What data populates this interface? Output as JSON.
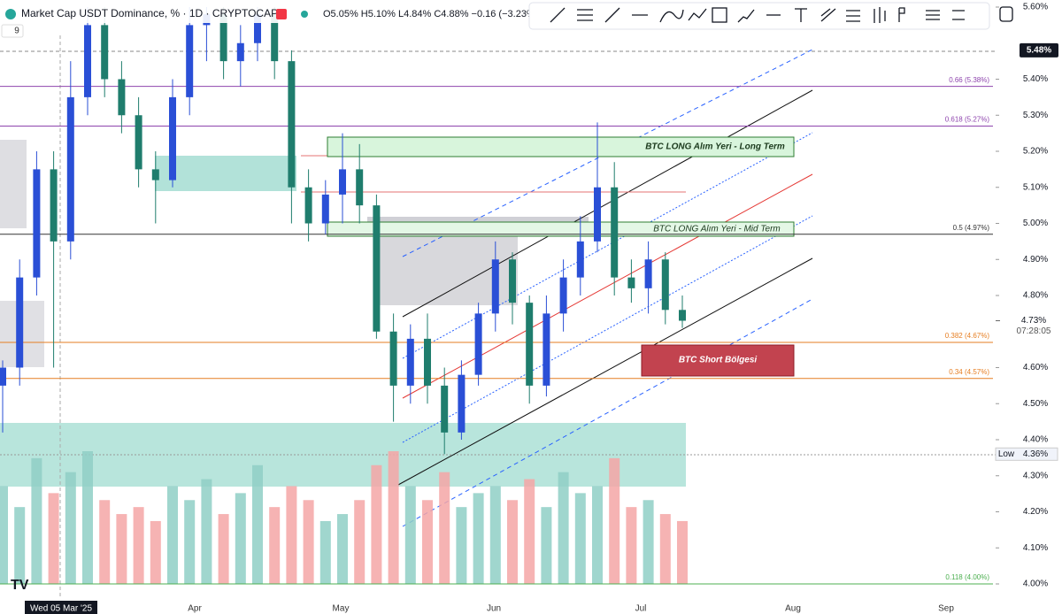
{
  "chart_data": {
    "type": "candlestick",
    "title": "Market Cap USDT Dominance, % · 1D · CRYPTOCAP",
    "ohlc_text": "O5.05% H5.10% L4.84% C4.88% −0.16 (−3.23%)",
    "indicator_count": "9",
    "ylim": [
      4.0,
      5.6
    ],
    "yticks": [
      {
        "value": 5.6,
        "label": "5.60%"
      },
      {
        "value": 5.4,
        "label": "5.40%"
      },
      {
        "value": 5.3,
        "label": "5.30%"
      },
      {
        "value": 5.2,
        "label": "5.20%"
      },
      {
        "value": 5.1,
        "label": "5.10%"
      },
      {
        "value": 5.0,
        "label": "5.00%"
      },
      {
        "value": 4.9,
        "label": "4.90%"
      },
      {
        "value": 4.8,
        "label": "4.80%"
      },
      {
        "value": 4.6,
        "label": "4.60%"
      },
      {
        "value": 4.5,
        "label": "4.50%"
      },
      {
        "value": 4.4,
        "label": "4.40%"
      },
      {
        "value": 4.3,
        "label": "4.30%"
      },
      {
        "value": 4.2,
        "label": "4.20%"
      },
      {
        "value": 4.1,
        "label": "4.10%"
      },
      {
        "value": 4.0,
        "label": "4.00%"
      }
    ],
    "date_labels": [
      "Wed 05 Mar '25",
      "Apr",
      "May",
      "Jun",
      "Jul",
      "Aug",
      "Sep"
    ],
    "up_color": "#2a4fd6",
    "down_color": "#1f7d6d",
    "candles": [
      {
        "o": 4.55,
        "h": 4.62,
        "l": 4.42,
        "c": 4.6
      },
      {
        "o": 4.6,
        "h": 4.9,
        "l": 4.55,
        "c": 4.85
      },
      {
        "o": 4.85,
        "h": 5.2,
        "l": 4.8,
        "c": 5.15
      },
      {
        "o": 5.15,
        "h": 5.2,
        "l": 4.6,
        "c": 4.95
      },
      {
        "o": 4.95,
        "h": 5.45,
        "l": 4.9,
        "c": 5.35
      },
      {
        "o": 5.35,
        "h": 5.6,
        "l": 5.3,
        "c": 5.55
      },
      {
        "o": 5.55,
        "h": 5.6,
        "l": 5.35,
        "c": 5.4
      },
      {
        "o": 5.4,
        "h": 5.45,
        "l": 5.25,
        "c": 5.3
      },
      {
        "o": 5.3,
        "h": 5.35,
        "l": 5.1,
        "c": 5.15
      },
      {
        "o": 5.15,
        "h": 5.2,
        "l": 5.0,
        "c": 5.12
      },
      {
        "o": 5.12,
        "h": 5.4,
        "l": 5.1,
        "c": 5.35
      },
      {
        "o": 5.35,
        "h": 5.6,
        "l": 5.3,
        "c": 5.55
      },
      {
        "o": 5.55,
        "h": 5.6,
        "l": 5.45,
        "c": 5.58
      },
      {
        "o": 5.58,
        "h": 5.6,
        "l": 5.4,
        "c": 5.45
      },
      {
        "o": 5.45,
        "h": 5.55,
        "l": 5.38,
        "c": 5.5
      },
      {
        "o": 5.5,
        "h": 5.6,
        "l": 5.45,
        "c": 5.58
      },
      {
        "o": 5.58,
        "h": 5.6,
        "l": 5.4,
        "c": 5.45
      },
      {
        "o": 5.45,
        "h": 5.48,
        "l": 5.0,
        "c": 5.1
      },
      {
        "o": 5.1,
        "h": 5.15,
        "l": 4.95,
        "c": 5.0
      },
      {
        "o": 5.0,
        "h": 5.12,
        "l": 4.97,
        "c": 5.08
      },
      {
        "o": 5.08,
        "h": 5.25,
        "l": 5.0,
        "c": 5.15
      },
      {
        "o": 5.15,
        "h": 5.22,
        "l": 5.0,
        "c": 5.05
      },
      {
        "o": 5.05,
        "h": 5.08,
        "l": 4.68,
        "c": 4.7
      },
      {
        "o": 4.7,
        "h": 4.75,
        "l": 4.45,
        "c": 4.55
      },
      {
        "o": 4.55,
        "h": 4.72,
        "l": 4.5,
        "c": 4.68
      },
      {
        "o": 4.68,
        "h": 4.75,
        "l": 4.5,
        "c": 4.55
      },
      {
        "o": 4.55,
        "h": 4.6,
        "l": 4.36,
        "c": 4.42
      },
      {
        "o": 4.42,
        "h": 4.62,
        "l": 4.4,
        "c": 4.58
      },
      {
        "o": 4.58,
        "h": 4.78,
        "l": 4.55,
        "c": 4.75
      },
      {
        "o": 4.75,
        "h": 4.95,
        "l": 4.7,
        "c": 4.9
      },
      {
        "o": 4.9,
        "h": 4.92,
        "l": 4.72,
        "c": 4.78
      },
      {
        "o": 4.78,
        "h": 4.8,
        "l": 4.5,
        "c": 4.55
      },
      {
        "o": 4.55,
        "h": 4.8,
        "l": 4.52,
        "c": 4.75
      },
      {
        "o": 4.75,
        "h": 4.9,
        "l": 4.7,
        "c": 4.85
      },
      {
        "o": 4.85,
        "h": 5.02,
        "l": 4.8,
        "c": 4.95
      },
      {
        "o": 4.95,
        "h": 5.28,
        "l": 4.92,
        "c": 5.1
      },
      {
        "o": 5.1,
        "h": 5.17,
        "l": 4.8,
        "c": 4.85
      },
      {
        "o": 4.85,
        "h": 4.9,
        "l": 4.78,
        "c": 4.82
      },
      {
        "o": 4.82,
        "h": 4.95,
        "l": 4.75,
        "c": 4.9
      },
      {
        "o": 4.9,
        "h": 4.92,
        "l": 4.72,
        "c": 4.76
      },
      {
        "o": 4.76,
        "h": 4.8,
        "l": 4.71,
        "c": 4.73
      }
    ],
    "volumes": [
      70,
      55,
      90,
      65,
      80,
      95,
      60,
      50,
      55,
      45,
      70,
      60,
      75,
      50,
      65,
      85,
      55,
      70,
      60,
      45,
      50,
      60,
      85,
      95,
      70,
      60,
      80,
      55,
      65,
      70,
      60,
      75,
      55,
      80,
      65,
      70,
      90,
      55,
      60,
      50,
      45
    ],
    "levels": [
      {
        "label": "0.66 (5.38%)",
        "value": 5.38,
        "color": "#8e44ad"
      },
      {
        "label": "0.618 (5.27%)",
        "value": 5.27,
        "color": "#8e44ad"
      },
      {
        "label": "0.5 (4.97%)",
        "value": 4.97,
        "color": "#333333"
      },
      {
        "label": "0.382 (4.67%)",
        "value": 4.67,
        "color": "#e67e22"
      },
      {
        "label": "0.34 (4.57%)",
        "value": 4.57,
        "color": "#e67e22"
      },
      {
        "label": "0.118 (4.00%)",
        "value": 4.0,
        "color": "#4caf50"
      }
    ],
    "annotations": [
      "BTC LONG Alım Yeri - Long Term",
      "BTC LONG Alım Yeri - Mid Term",
      "BTC Short Bölgesi"
    ],
    "last_price": {
      "value": 5.48,
      "label": "5.48%"
    },
    "current_price": {
      "value": 4.73,
      "label": "4.73%"
    },
    "countdown": "07:28:05",
    "low": {
      "name": "Low",
      "value": 4.36,
      "label": "4.36%"
    }
  }
}
